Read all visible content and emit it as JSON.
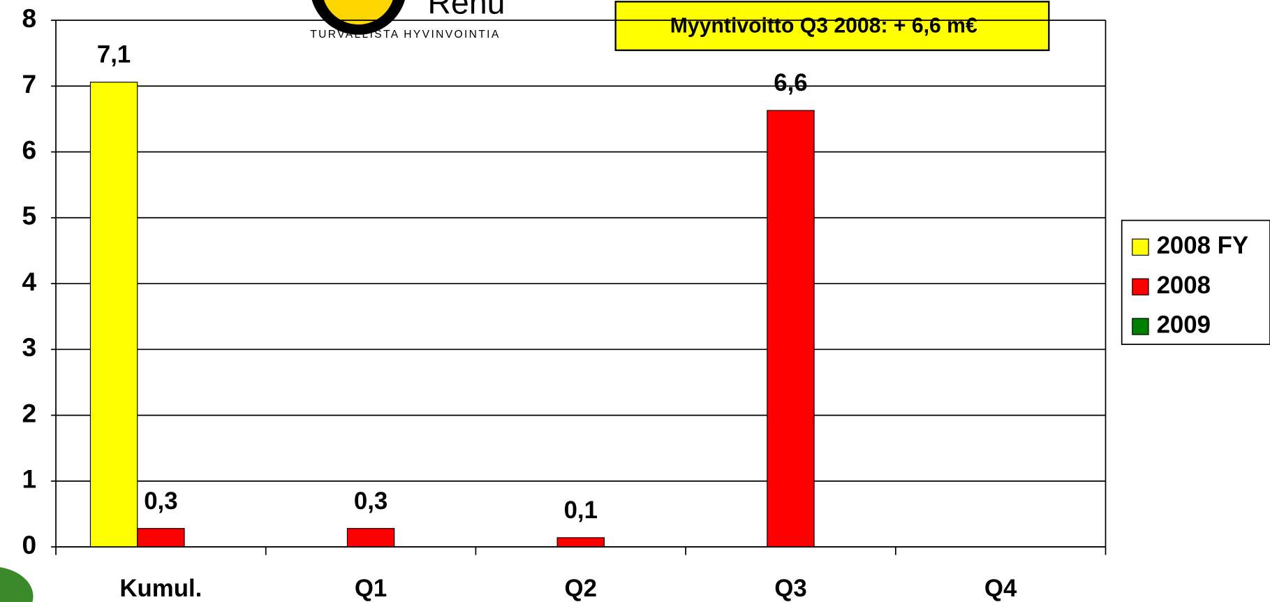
{
  "chart_data": {
    "type": "bar",
    "annotation": "Myyntivoitto Q3 2008:  + 6,6 m€",
    "logo": {
      "name": "Renu",
      "tagline": "TURVALLISTA HYVINVOINTIA"
    },
    "categories": [
      "Kumul.",
      "Q1",
      "Q2",
      "Q3",
      "Q4"
    ],
    "series": [
      {
        "name": "2008 FY",
        "color": "#ffff00",
        "values": [
          7.06,
          null,
          null,
          null,
          null
        ],
        "value_labels": [
          "7,1",
          null,
          null,
          null,
          null
        ]
      },
      {
        "name": "2008",
        "color": "#ff0000",
        "values": [
          0.28,
          0.28,
          0.14,
          6.63,
          null
        ],
        "value_labels": [
          "0,3",
          "0,3",
          "0,1",
          "6,6",
          null
        ]
      },
      {
        "name": "2009",
        "color": "#008000",
        "values": [
          null,
          null,
          null,
          null,
          null
        ]
      }
    ],
    "ylim": [
      0,
      8
    ],
    "yticks": [
      0,
      1,
      2,
      3,
      4,
      5,
      6,
      7,
      8
    ],
    "grid": true,
    "legend": "right"
  }
}
